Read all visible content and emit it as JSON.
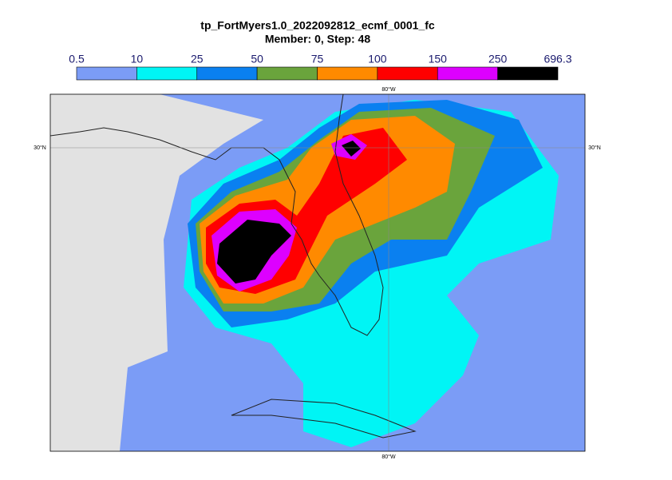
{
  "header": {
    "title": "tp_FortMyers1.0_2022092812_ecmf_0001_fc",
    "subtitle": "Member: 0, Step: 48"
  },
  "legend": {
    "levels": [
      "0.5",
      "10",
      "25",
      "50",
      "75",
      "100",
      "150",
      "250",
      "696.3"
    ],
    "colors": [
      "#7b9cf6",
      "#00f5f5",
      "#0a80f0",
      "#6aa43c",
      "#ff8a00",
      "#ff0000",
      "#dd00ff",
      "#000000"
    ]
  },
  "map": {
    "lat_label": "30°N",
    "lon_label": "80°W"
  }
}
